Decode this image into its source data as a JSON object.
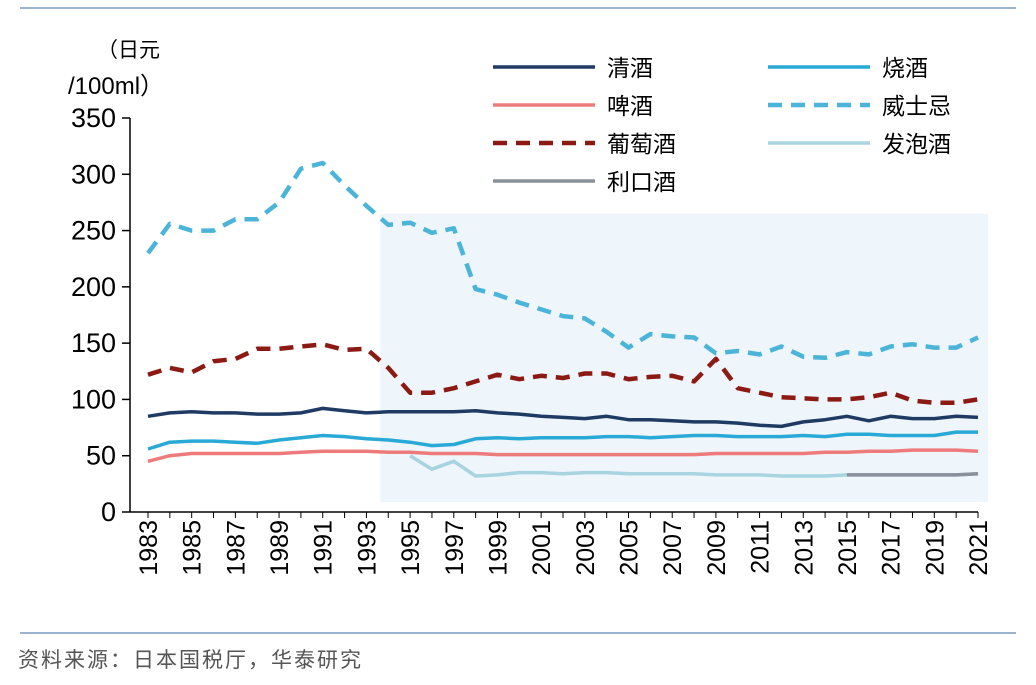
{
  "chart_data": {
    "type": "line",
    "ylabel_line1": "（日元",
    "ylabel_line2": "/100ml）",
    "ylim": [
      0,
      350
    ],
    "yticks": [
      0,
      50,
      100,
      150,
      200,
      250,
      300,
      350
    ],
    "x": [
      1983,
      1984,
      1985,
      1986,
      1987,
      1988,
      1989,
      1990,
      1991,
      1992,
      1993,
      1994,
      1995,
      1996,
      1997,
      1998,
      1999,
      2000,
      2001,
      2002,
      2003,
      2004,
      2005,
      2006,
      2007,
      2008,
      2009,
      2010,
      2011,
      2012,
      2013,
      2014,
      2015,
      2016,
      2017,
      2018,
      2019,
      2020,
      2021
    ],
    "xticks": [
      "1983",
      "1985",
      "1987",
      "1989",
      "1991",
      "1993",
      "1995",
      "1997",
      "1999",
      "2001",
      "2003",
      "2005",
      "2007",
      "2009",
      "2011",
      "2013",
      "2015",
      "2017",
      "2019",
      "2021"
    ],
    "highlight_range": [
      1994,
      2021
    ],
    "highlight_top": 265,
    "series": [
      {
        "name": "清酒",
        "color": "#1f3b63",
        "dash": "solid",
        "values": [
          85,
          88,
          89,
          88,
          88,
          87,
          87,
          88,
          92,
          90,
          88,
          89,
          89,
          89,
          89,
          90,
          88,
          87,
          85,
          84,
          83,
          85,
          82,
          82,
          81,
          80,
          80,
          79,
          77,
          76,
          80,
          82,
          85,
          81,
          85,
          83,
          83,
          85,
          84
        ]
      },
      {
        "name": "烧酒",
        "color": "#29a9d6",
        "dash": "solid",
        "values": [
          56,
          62,
          63,
          63,
          62,
          61,
          64,
          66,
          68,
          67,
          65,
          64,
          62,
          59,
          60,
          65,
          66,
          65,
          66,
          66,
          66,
          67,
          67,
          66,
          67,
          68,
          68,
          67,
          67,
          67,
          68,
          67,
          69,
          69,
          68,
          68,
          68,
          71,
          71
        ]
      },
      {
        "name": "啤酒",
        "color": "#ee7b7b",
        "dash": "solid",
        "values": [
          45,
          50,
          52,
          52,
          52,
          52,
          52,
          53,
          54,
          54,
          54,
          53,
          53,
          52,
          52,
          52,
          51,
          51,
          51,
          51,
          51,
          51,
          51,
          51,
          51,
          51,
          52,
          52,
          52,
          52,
          52,
          53,
          53,
          54,
          54,
          55,
          55,
          55,
          54
        ]
      },
      {
        "name": "威士忌",
        "color": "#4ab5d8",
        "dash": "dash",
        "values": [
          230,
          256,
          250,
          250,
          260,
          260,
          275,
          305,
          310,
          290,
          272,
          255,
          257,
          248,
          252,
          198,
          193,
          186,
          180,
          174,
          172,
          160,
          146,
          158,
          156,
          155,
          141,
          143,
          140,
          147,
          138,
          137,
          142,
          140,
          147,
          149,
          146,
          146,
          155
        ]
      },
      {
        "name": "葡萄酒",
        "color": "#8c1a12",
        "dash": "dash",
        "values": [
          122,
          128,
          124,
          134,
          136,
          145,
          145,
          147,
          149,
          144,
          145,
          128,
          106,
          106,
          110,
          116,
          122,
          118,
          121,
          119,
          123,
          123,
          118,
          120,
          121,
          116,
          136,
          110,
          106,
          102,
          101,
          100,
          100,
          102,
          106,
          99,
          97,
          97,
          100
        ]
      },
      {
        "name": "发泡酒",
        "color": "#a8d3e0",
        "dash": "solid",
        "start": 1995,
        "values": [
          null,
          null,
          null,
          null,
          null,
          null,
          null,
          null,
          null,
          null,
          null,
          null,
          50,
          38,
          45,
          32,
          33,
          35,
          35,
          34,
          35,
          35,
          34,
          34,
          34,
          34,
          33,
          33,
          33,
          32,
          32,
          32,
          33,
          33,
          33,
          33,
          33,
          33,
          34
        ]
      },
      {
        "name": "利口酒",
        "color": "#8a8f9c",
        "dash": "solid",
        "start": 2015,
        "values": [
          null,
          null,
          null,
          null,
          null,
          null,
          null,
          null,
          null,
          null,
          null,
          null,
          null,
          null,
          null,
          null,
          null,
          null,
          null,
          null,
          null,
          null,
          null,
          null,
          null,
          null,
          null,
          null,
          null,
          null,
          null,
          null,
          33,
          33,
          33,
          33,
          33,
          33,
          34
        ]
      }
    ]
  },
  "source": "资料来源：日本国税厅，华泰研究"
}
